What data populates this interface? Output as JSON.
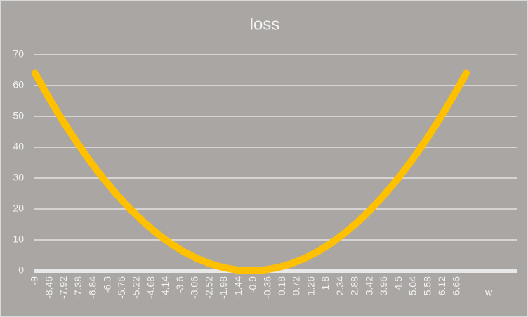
{
  "chart_data": {
    "type": "line",
    "title": "loss",
    "x_label": "w",
    "x": [
      -9,
      -8.5,
      -8,
      -7.5,
      -7,
      -6.5,
      -6,
      -5.5,
      -5,
      -4.5,
      -4,
      -3.5,
      -3,
      -2.5,
      -2,
      -1.5,
      -1,
      -0.5,
      0,
      0.5,
      1,
      1.5,
      2,
      2.5,
      3,
      3.5,
      4,
      4.5,
      5,
      5.5,
      6,
      6.5,
      7
    ],
    "values": [
      64,
      56.25,
      49,
      42.25,
      36,
      30.25,
      25,
      20.25,
      16,
      12.25,
      9,
      6.25,
      4,
      2.25,
      1,
      0.25,
      0,
      0.25,
      1,
      2.25,
      4,
      6.25,
      9,
      12.25,
      16,
      20.25,
      25,
      30.25,
      36,
      42.25,
      49,
      56.25,
      64
    ],
    "color": "#ffc000",
    "xlim": [
      -9.05,
      8.9
    ],
    "xticks": [
      -9,
      -8.46,
      -7.92,
      -7.38,
      -6.84,
      -6.3,
      -5.76,
      -5.22,
      -4.68,
      -4.14,
      -3.6,
      -3.06,
      -2.52,
      -1.98,
      -1.44,
      -0.9,
      -0.36,
      0.18,
      0.72,
      1.26,
      1.8,
      2.34,
      2.88,
      3.42,
      3.96,
      4.5,
      5.04,
      5.58,
      6.12,
      6.66
    ],
    "ylim": [
      0,
      70
    ],
    "yticks": [
      0,
      10,
      20,
      30,
      40,
      50,
      60,
      70
    ],
    "grid": true
  }
}
